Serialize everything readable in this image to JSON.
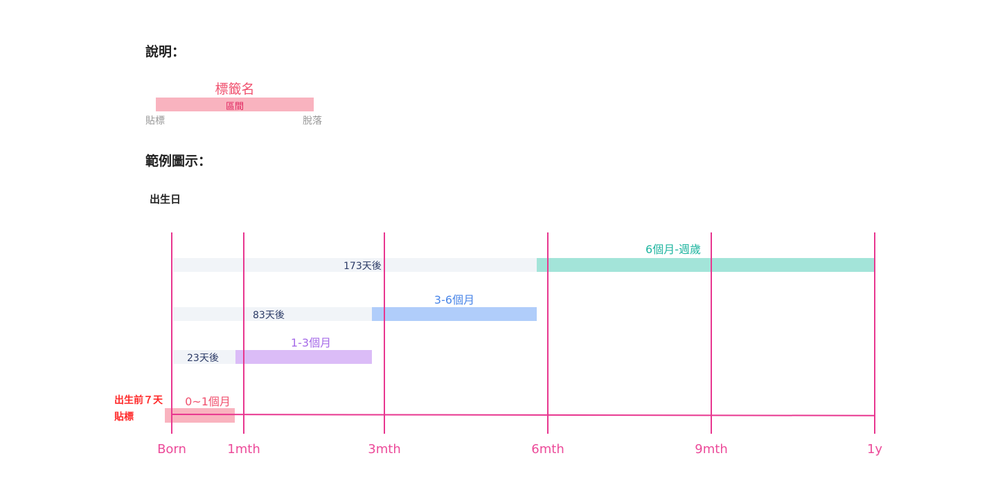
{
  "legend_title": "說明：",
  "legend": {
    "tag_name": "標籤名",
    "interval": "區間",
    "attach": "貼標",
    "detach": "脫落"
  },
  "example_title": "範例圖示：",
  "birth_label": "出生日",
  "rows": [
    {
      "label": "6個月-週歲",
      "offset": "173天後",
      "color": "#a3e4d9",
      "text_color": "#1fb5a0"
    },
    {
      "label": "3-6個月",
      "offset": "83天後",
      "color": "#b0cdfa",
      "text_color": "#4a86e8"
    },
    {
      "label": "1-3個月",
      "offset": "23天後",
      "color": "#dbbcf7",
      "text_color": "#a66be8"
    },
    {
      "label": "0~1個月",
      "pre_label_1": "出生前７天",
      "pre_label_2": "貼標",
      "color": "#f9b3bf",
      "text_color": "#f0506e"
    }
  ],
  "axis": [
    "Born",
    "1mth",
    "3mth",
    "6mth",
    "9mth",
    "1y"
  ],
  "colors": {
    "axis": "#e8368f",
    "offset_bg": "#f1f4f8",
    "pre_label": "#ff2a2a"
  }
}
